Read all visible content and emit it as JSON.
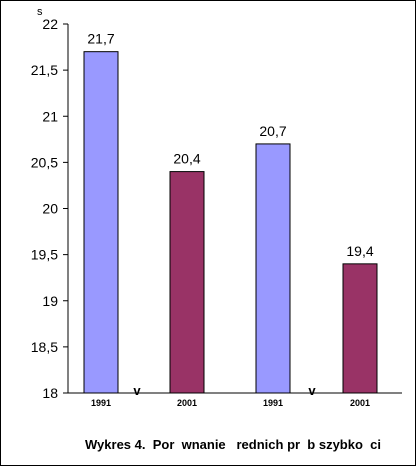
{
  "chart_data": {
    "type": "bar",
    "ylabel": "s",
    "ylim": [
      18,
      22
    ],
    "yticks": [
      "18",
      "18,5",
      "19",
      "19,5",
      "20",
      "20,5",
      "21",
      "21,5",
      "22"
    ],
    "bars": [
      {
        "category": "1991",
        "value": 21.7,
        "label": "21,7",
        "color": "#9999ff"
      },
      {
        "category": "2001",
        "value": 20.4,
        "label": "20,4",
        "color": "#993366"
      },
      {
        "category": "1991",
        "value": 20.7,
        "label": "20,7",
        "color": "#9999ff"
      },
      {
        "category": "2001",
        "value": 19.4,
        "label": "19,4",
        "color": "#993366"
      }
    ],
    "group_marks": [
      "v",
      "v"
    ],
    "grid": false
  },
  "caption": "Wykres 4.  Por  wnanie   rednich pr  b szybko  ci"
}
